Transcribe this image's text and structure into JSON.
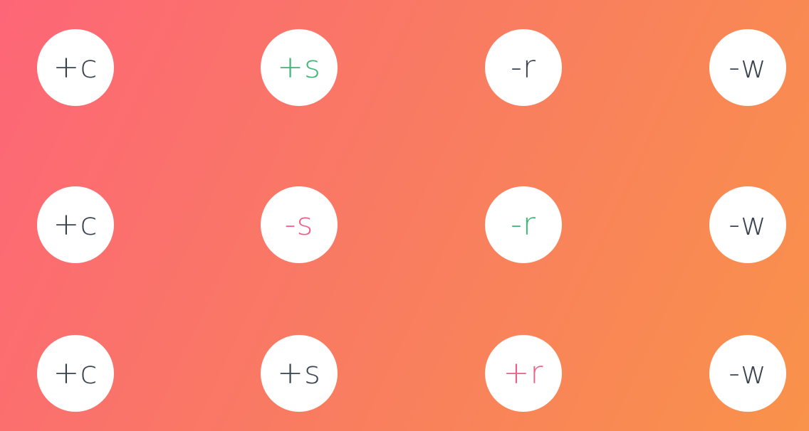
{
  "colors": {
    "default_text": "#3a4451",
    "added": "#3db574",
    "removed": "#ef5f88",
    "button_bg": "#ffffff",
    "gradient_start": "#fd6677",
    "gradient_end": "#f9924a"
  },
  "rows": [
    {
      "cells": [
        {
          "label": "+c",
          "state": "default"
        },
        {
          "label": "+s",
          "state": "green"
        },
        {
          "label": "-r",
          "state": "default"
        },
        {
          "label": "-w",
          "state": "default"
        }
      ]
    },
    {
      "cells": [
        {
          "label": "+c",
          "state": "default"
        },
        {
          "label": "-s",
          "state": "pink"
        },
        {
          "label": "-r",
          "state": "green"
        },
        {
          "label": "-w",
          "state": "default"
        }
      ]
    },
    {
      "cells": [
        {
          "label": "+c",
          "state": "default"
        },
        {
          "label": "+s",
          "state": "default"
        },
        {
          "label": "+r",
          "state": "pink"
        },
        {
          "label": "-w",
          "state": "default"
        }
      ]
    }
  ]
}
